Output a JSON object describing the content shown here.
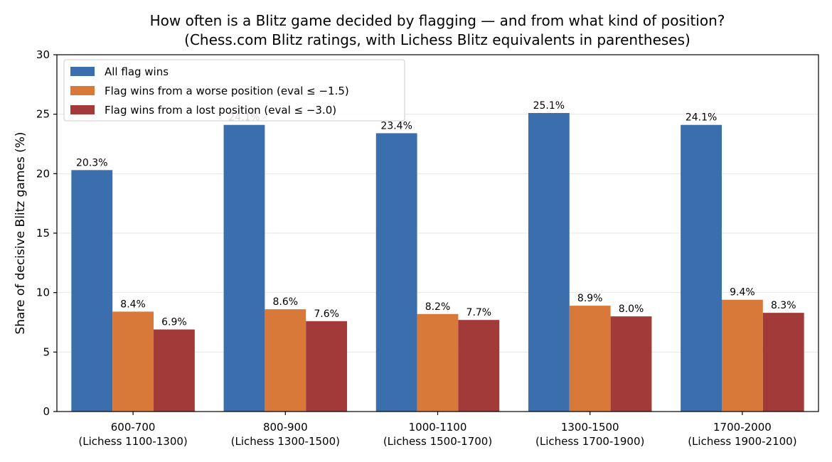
{
  "chart_data": {
    "type": "bar",
    "title": "How often is a Blitz game decided by flagging — and from what kind of position?",
    "subtitle": "(Chess.com Blitz ratings, with Lichess Blitz equivalents in parentheses)",
    "xlabel": "",
    "ylabel": "Share of decisive Blitz games (%)",
    "ylim": [
      0,
      30
    ],
    "yticks": [
      0,
      5,
      10,
      15,
      20,
      25,
      30
    ],
    "grid": "horizontal",
    "legend_position": "top-left",
    "categories": [
      [
        "600-700",
        "(Lichess 1100-1300)"
      ],
      [
        "800-900",
        "(Lichess 1300-1500)"
      ],
      [
        "1000-1100",
        "(Lichess 1500-1700)"
      ],
      [
        "1300-1500",
        "(Lichess 1700-1900)"
      ],
      [
        "1700-2000",
        "(Lichess 1900-2100)"
      ]
    ],
    "series": [
      {
        "name": "All flag wins",
        "color": "#3a6ead",
        "values": [
          20.3,
          24.1,
          23.4,
          25.1,
          24.1
        ]
      },
      {
        "name": "Flag wins from a worse position (eval ≤ −1.5)",
        "color": "#d8793a",
        "values": [
          8.4,
          8.6,
          8.2,
          8.9,
          9.4
        ]
      },
      {
        "name": "Flag wins from a lost position (eval ≤ −3.0)",
        "color": "#a33a3a",
        "values": [
          6.9,
          7.6,
          7.7,
          8.0,
          8.3
        ]
      }
    ],
    "value_label_format": "%"
  }
}
